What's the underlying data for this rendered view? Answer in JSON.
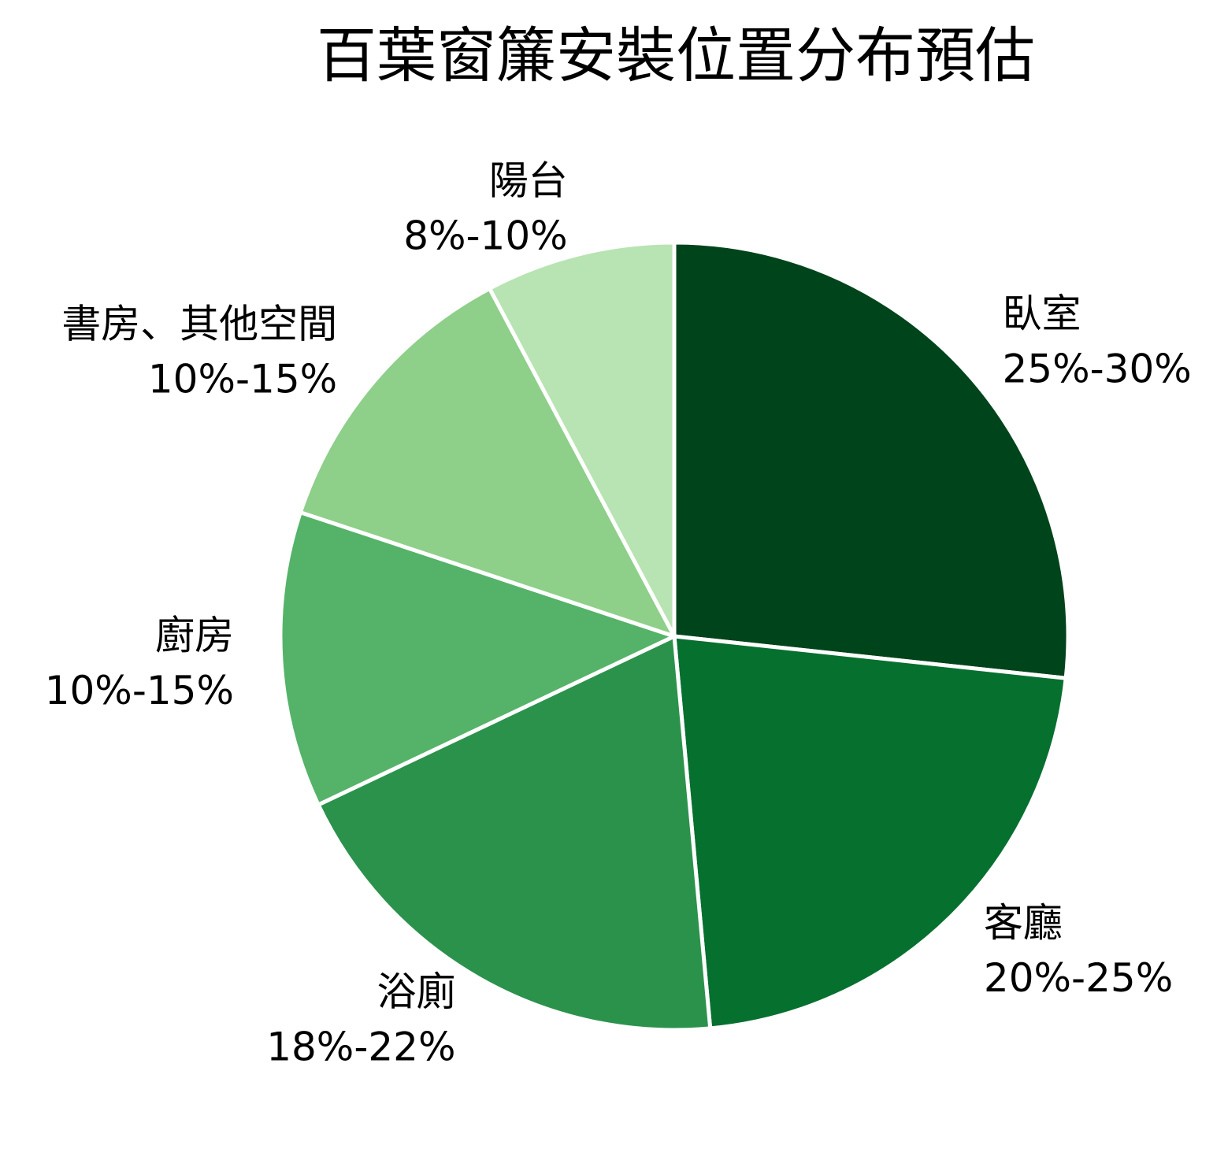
{
  "chart_data": {
    "type": "pie",
    "title": "百葉窗簾安裝位置分布預估",
    "start_angle": "12 o'clock",
    "direction": "clockwise",
    "slices": [
      {
        "name": "臥室",
        "range_label": "25%-30%",
        "value": 27.5,
        "color": "#00441b"
      },
      {
        "name": "客廳",
        "range_label": "20%-25%",
        "value": 22.5,
        "color": "#06702f"
      },
      {
        "name": "浴廁",
        "range_label": "18%-22%",
        "value": 20,
        "color": "#2b924c"
      },
      {
        "name": "廚房",
        "range_label": "10%-15%",
        "value": 12.5,
        "color": "#54b368"
      },
      {
        "name": "書房、其他空間",
        "range_label": "10%-15%",
        "value": 12.5,
        "color": "#8ecf8a"
      },
      {
        "name": "陽台",
        "range_label": "8%-10%",
        "value": 8,
        "color": "#b8e3b2"
      }
    ]
  }
}
